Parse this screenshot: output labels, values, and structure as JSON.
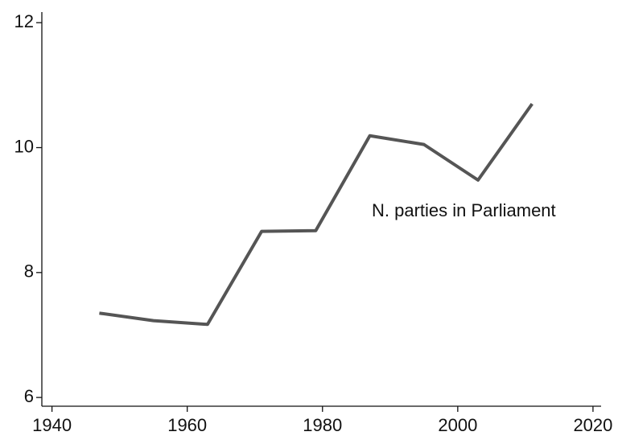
{
  "chart_data": {
    "type": "line",
    "annotation": "N. parties in Parliament",
    "x": [
      1947,
      1955,
      1963,
      1971,
      1979,
      1987,
      1995,
      2003,
      2011
    ],
    "values": [
      7.35,
      7.23,
      7.17,
      8.66,
      8.67,
      10.19,
      10.05,
      9.48,
      10.7
    ],
    "color": "#555555",
    "xlim": [
      1938.5,
      2021.2
    ],
    "xticks": [
      1940,
      1960,
      1980,
      2000,
      2020
    ],
    "ylim": [
      5.86,
      12.17
    ],
    "yticks": [
      6,
      8,
      10,
      12
    ]
  }
}
